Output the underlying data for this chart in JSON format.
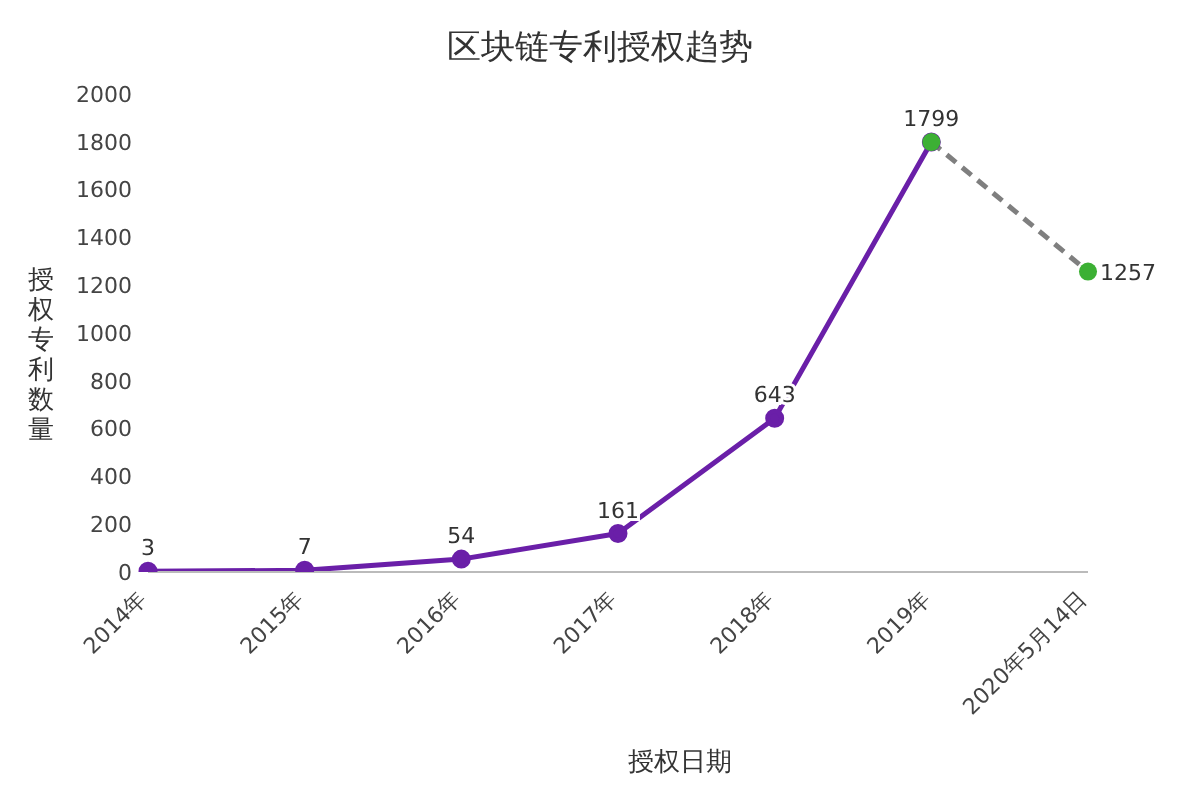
{
  "chart_data": {
    "type": "line",
    "title": "区块链专利授权趋势",
    "xlabel": "授权日期",
    "ylabel": "授权专利数量",
    "categories": [
      "2014年",
      "2015年",
      "2016年",
      "2017年",
      "2018年",
      "2019年",
      "2020年5月14日"
    ],
    "series": [
      {
        "color": "#6a1fa8",
        "line_style": "solid",
        "marker": "circle",
        "values": [
          3,
          7,
          54,
          161,
          643,
          1799,
          null
        ],
        "value_labels": [
          "3",
          "7",
          "54",
          "161",
          "643",
          "1799",
          null
        ]
      },
      {
        "color": "#7f7f7f",
        "line_style": "dashed",
        "marker": "none",
        "values": [
          null,
          null,
          null,
          null,
          null,
          1799,
          1257
        ],
        "value_labels": [
          null,
          null,
          null,
          null,
          null,
          null,
          "1257"
        ]
      },
      {
        "type": "scatter",
        "color": "#3cb034",
        "marker": "circle",
        "values": [
          null,
          null,
          null,
          null,
          null,
          1799,
          1257
        ]
      }
    ],
    "ylim": [
      0,
      2000
    ],
    "yticks": [
      0,
      200,
      400,
      600,
      800,
      1000,
      1200,
      1400,
      1600,
      1800,
      2000
    ],
    "grid": false,
    "legend": false
  }
}
